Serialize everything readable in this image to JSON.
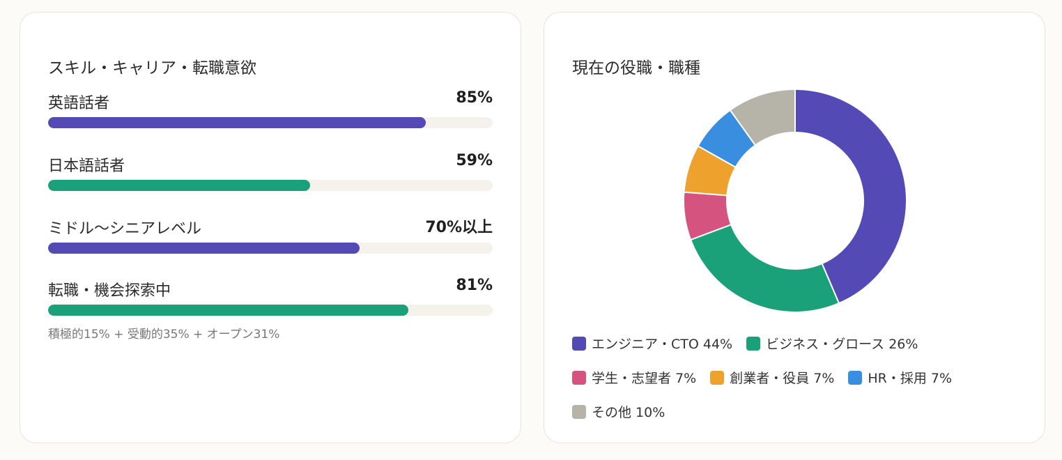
{
  "colors": {
    "purple": "#534ab6",
    "green": "#1ba179",
    "track": "#f4f2ea"
  },
  "left_card": {
    "title": "スキル・キャリア・転職意欲",
    "stats": [
      {
        "label": "英語話者",
        "value_text": "85%",
        "fill": 0.85,
        "color": "#534ab6"
      },
      {
        "label": "日本語話者",
        "value_text": "59%",
        "fill": 0.59,
        "color": "#1ba179"
      },
      {
        "label": "ミドル〜シニアレベル",
        "value_text": "70%以上",
        "fill": 0.7,
        "color": "#534ab6"
      },
      {
        "label": "転職・機会探索中",
        "value_text": "81%",
        "fill": 0.81,
        "color": "#1ba179",
        "note": "積極的15% + 受動的35% + オープン31%"
      }
    ]
  },
  "right_card": {
    "title": "現在の役職・職種"
  },
  "chart_data": {
    "type": "pie",
    "donut": true,
    "title": "現在の役職・職種",
    "legend_position": "bottom",
    "slices": [
      {
        "label": "エンジニア・CTO",
        "value": 44,
        "text": "エンジニア・CTO 44%",
        "color": "#534ab6"
      },
      {
        "label": "ビジネス・グロース",
        "value": 26,
        "text": "ビジネス・グロース 26%",
        "color": "#1ba179"
      },
      {
        "label": "学生・志望者",
        "value": 7,
        "text": "学生・志望者 7%",
        "color": "#d5547f"
      },
      {
        "label": "創業者・役員",
        "value": 7,
        "text": "創業者・役員 7%",
        "color": "#eea22d"
      },
      {
        "label": "HR・採用",
        "value": 7,
        "text": "HR・採用 7%",
        "color": "#3a8ee0"
      },
      {
        "label": "その他",
        "value": 10,
        "text": "その他 10%",
        "color": "#b6b3a9"
      }
    ]
  }
}
